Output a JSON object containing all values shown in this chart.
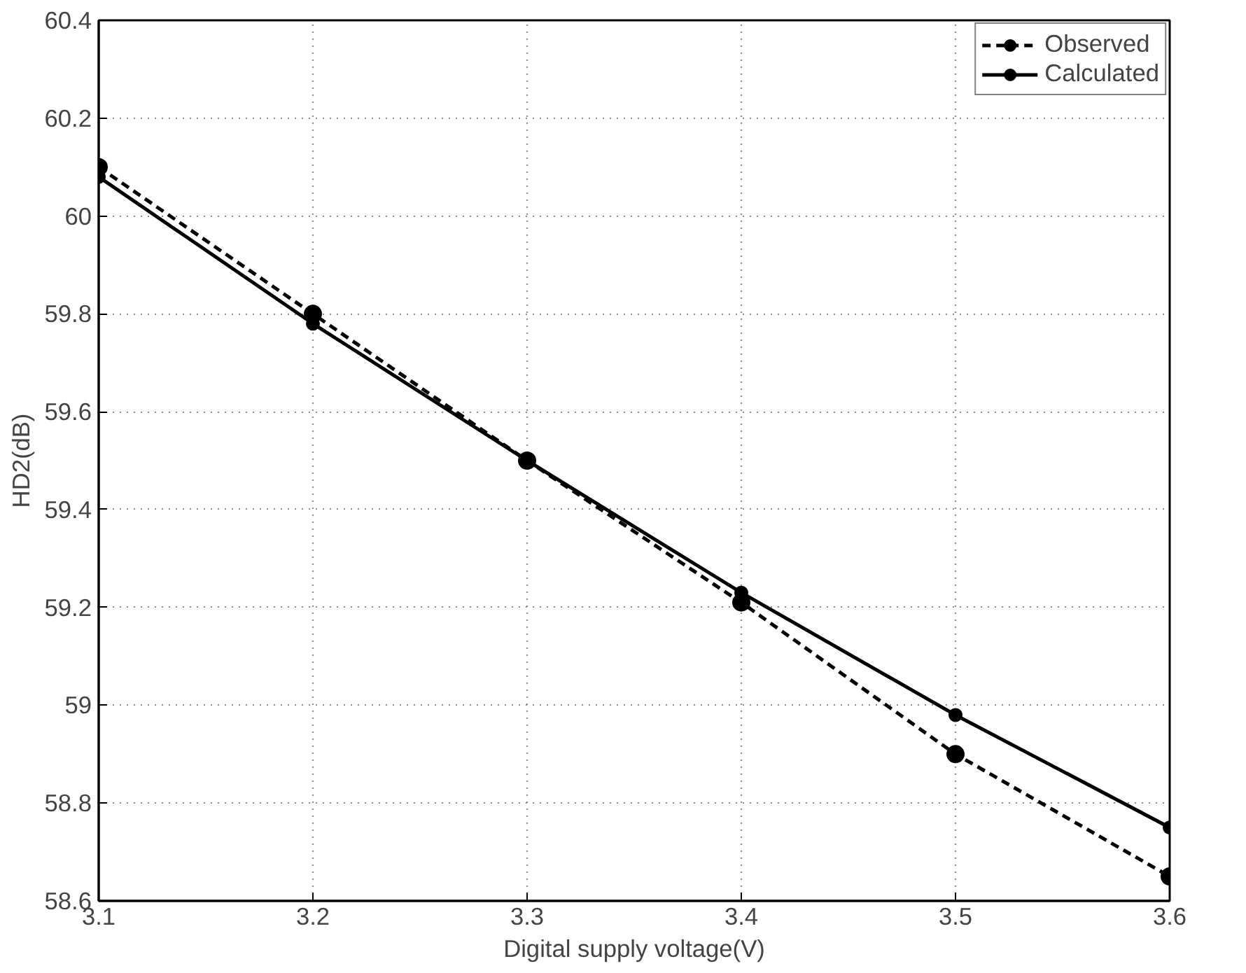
{
  "chart_data": {
    "type": "line",
    "xlabel": "Digital supply voltage(V)",
    "ylabel": "HD2(dB)",
    "x": [
      3.1,
      3.2,
      3.3,
      3.4,
      3.5,
      3.6
    ],
    "series": [
      {
        "name": "Observed",
        "color": "#000000",
        "line_style": "dashed",
        "values": [
          60.1,
          59.8,
          59.5,
          59.21,
          58.9,
          58.65
        ]
      },
      {
        "name": "Calculated",
        "color": "#000000",
        "line_style": "solid",
        "values": [
          60.08,
          59.78,
          59.5,
          59.23,
          58.98,
          58.75
        ]
      }
    ],
    "marker": "circle",
    "xlim": [
      3.1,
      3.6
    ],
    "xticks": [
      3.1,
      3.2,
      3.3,
      3.4,
      3.5,
      3.6
    ],
    "ylim": [
      58.6,
      60.4
    ],
    "yticks": [
      58.6,
      58.8,
      59,
      59.2,
      59.4,
      59.6,
      59.8,
      60,
      60.2,
      60.4
    ],
    "grid": true,
    "legend": "top right"
  }
}
